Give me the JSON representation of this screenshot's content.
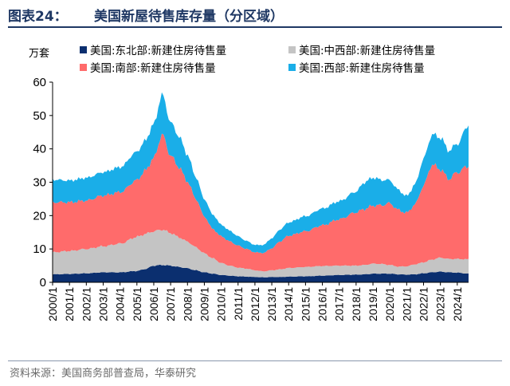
{
  "header": {
    "figure_no": "图表24：",
    "title": "美国新屋待售库存量（分区域）"
  },
  "unit": "万套",
  "source": "资料来源：美国商务部普查局，华泰研究",
  "colors": {
    "northeast": "#0b2f6f",
    "midwest": "#c4c4c4",
    "south": "#ff6b6b",
    "west": "#1aaee8",
    "header_blue": "#1f3864"
  },
  "chart_data": {
    "type": "area",
    "stacked": true,
    "ylim": [
      0,
      60
    ],
    "yticks": [
      0,
      10,
      20,
      30,
      40,
      50,
      60
    ],
    "xlabels": [
      "2000/1",
      "2001/1",
      "2002/1",
      "2003/1",
      "2004/1",
      "2005/1",
      "2006/1",
      "2007/1",
      "2008/1",
      "2009/1",
      "2010/1",
      "2011/1",
      "2012/1",
      "2013/1",
      "2014/1",
      "2015/1",
      "2016/1",
      "2017/1",
      "2018/1",
      "2019/1",
      "2020/1",
      "2021/1",
      "2022/1",
      "2023/1",
      "2024/1"
    ],
    "x_range": [
      2000.0,
      2024.67
    ],
    "legend": "top",
    "series": [
      {
        "key": "northeast",
        "name": "美国:东北部:新建住房待售量",
        "x": [
          2000,
          2001,
          2002,
          2003,
          2004,
          2005,
          2005.5,
          2006,
          2006.5,
          2007,
          2007.5,
          2008,
          2008.5,
          2009,
          2009.5,
          2010,
          2010.5,
          2011,
          2011.5,
          2012,
          2012.5,
          2013,
          2013.5,
          2014,
          2015,
          2016,
          2017,
          2018,
          2018.5,
          2019,
          2019.5,
          2020,
          2020.5,
          2021,
          2021.5,
          2022,
          2022.5,
          2023,
          2023.5,
          2024,
          2024.67
        ],
        "values": [
          2.4,
          2.5,
          2.7,
          3.0,
          3.0,
          3.4,
          4.0,
          5.0,
          5.2,
          5.0,
          4.6,
          4.2,
          3.6,
          3.0,
          2.6,
          2.2,
          2.0,
          1.8,
          1.7,
          1.6,
          1.5,
          1.6,
          1.6,
          1.7,
          1.8,
          2.0,
          2.2,
          2.3,
          2.4,
          2.6,
          2.6,
          2.6,
          2.4,
          2.3,
          2.4,
          2.7,
          3.0,
          3.2,
          3.0,
          2.9,
          2.6
        ]
      },
      {
        "key": "midwest",
        "name": "美国:中西部:新建住房待售量",
        "x": [
          2000,
          2001,
          2002,
          2003,
          2004,
          2005,
          2005.5,
          2006,
          2006.5,
          2007,
          2007.5,
          2008,
          2008.5,
          2009,
          2009.5,
          2010,
          2010.5,
          2011,
          2011.5,
          2012,
          2012.5,
          2013,
          2013.5,
          2014,
          2015,
          2016,
          2017,
          2018,
          2018.5,
          2019,
          2019.5,
          2020,
          2020.5,
          2021,
          2021.5,
          2022,
          2022.5,
          2023,
          2023.5,
          2024,
          2024.67
        ],
        "values": [
          6.6,
          6.9,
          7.3,
          7.8,
          8.6,
          10.2,
          10.5,
          10.3,
          10.6,
          9.8,
          8.9,
          8.0,
          6.9,
          5.7,
          4.6,
          3.6,
          3.0,
          2.6,
          2.4,
          2.0,
          1.8,
          2.0,
          2.3,
          2.6,
          2.8,
          2.9,
          2.8,
          2.7,
          2.8,
          3.0,
          2.9,
          2.6,
          2.3,
          2.5,
          3.0,
          3.3,
          3.8,
          4.2,
          4.0,
          4.1,
          4.3
        ]
      },
      {
        "key": "south",
        "name": "美国:南部:新建住房待售量",
        "x": [
          2000,
          2001,
          2002,
          2003,
          2004,
          2005,
          2005.5,
          2006,
          2006.5,
          2007,
          2007.5,
          2008,
          2008.5,
          2009,
          2009.5,
          2010,
          2010.5,
          2011,
          2011.5,
          2012,
          2012.5,
          2013,
          2013.5,
          2014,
          2015,
          2016,
          2017,
          2018,
          2018.5,
          2019,
          2019.5,
          2020,
          2020.5,
          2021,
          2021.5,
          2022,
          2022.5,
          2023,
          2023.5,
          2024,
          2024.67
        ],
        "values": [
          15.0,
          14.6,
          14.5,
          15.2,
          15.4,
          17.0,
          19.0,
          22.0,
          28.5,
          23.2,
          21.0,
          18.0,
          14.5,
          11.0,
          8.8,
          8.0,
          7.3,
          6.6,
          5.9,
          5.4,
          5.5,
          6.6,
          8.4,
          9.7,
          10.7,
          12.2,
          13.9,
          16.0,
          16.8,
          17.4,
          17.6,
          18.5,
          17.0,
          16.0,
          18.0,
          23.0,
          28.5,
          26.5,
          24.0,
          26.0,
          28.0
        ]
      },
      {
        "key": "west",
        "name": "美国:西部:新建住房待售量",
        "x": [
          2000,
          2001,
          2002,
          2003,
          2004,
          2005,
          2005.5,
          2006,
          2006.5,
          2007,
          2007.5,
          2008,
          2008.5,
          2009,
          2009.5,
          2010,
          2010.5,
          2011,
          2011.5,
          2012,
          2012.5,
          2013,
          2013.5,
          2014,
          2015,
          2016,
          2017,
          2018,
          2018.5,
          2019,
          2019.5,
          2020,
          2020.5,
          2021,
          2021.5,
          2022,
          2022.5,
          2023,
          2023.5,
          2024,
          2024.67
        ],
        "values": [
          6.8,
          6.5,
          6.8,
          7.0,
          7.5,
          8.5,
          9.0,
          10.2,
          12.0,
          10.0,
          9.2,
          8.0,
          6.5,
          5.2,
          4.3,
          3.5,
          3.2,
          2.8,
          2.4,
          2.2,
          2.4,
          3.0,
          3.6,
          4.0,
          4.5,
          5.0,
          5.4,
          6.2,
          8.0,
          8.4,
          7.6,
          6.9,
          6.0,
          5.0,
          6.0,
          8.0,
          9.0,
          9.5,
          8.5,
          8.5,
          12.3
        ]
      }
    ]
  }
}
